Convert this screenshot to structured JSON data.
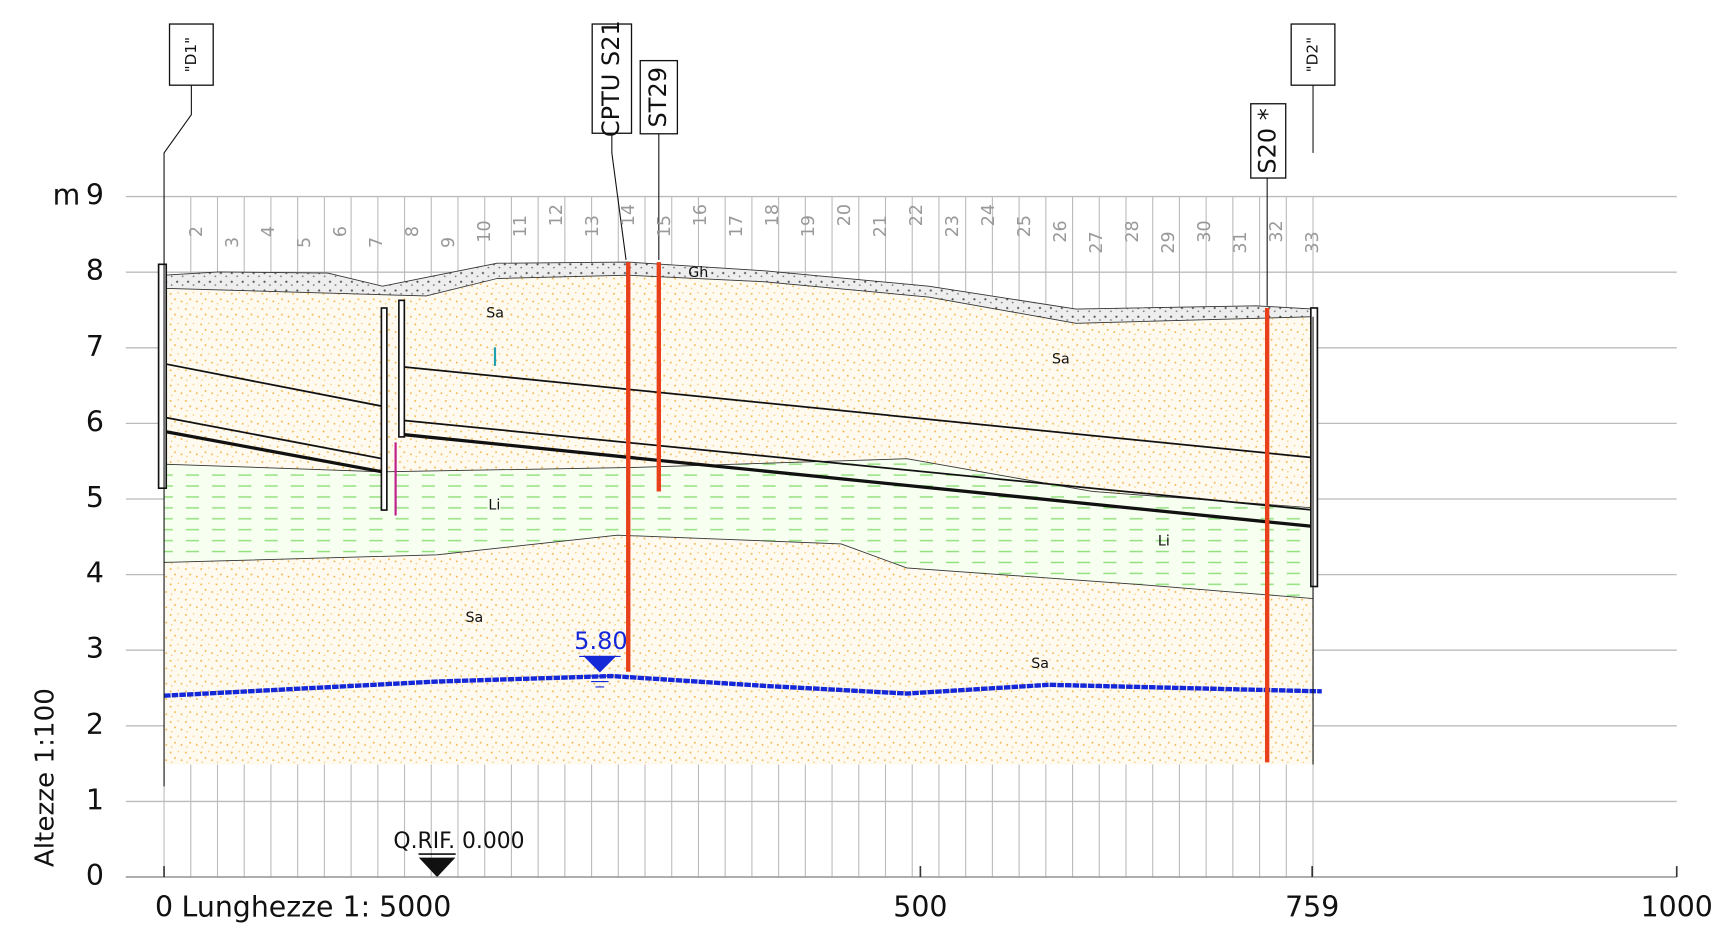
{
  "axes": {
    "y_unit": "m",
    "y_label": "Altezze 1:100",
    "x_label": "Lunghezze 1: 5000",
    "ylim": [
      0,
      9
    ],
    "yticks": [
      0,
      1,
      2,
      3,
      4,
      5,
      6,
      7,
      8,
      9
    ],
    "xlim": [
      0,
      1000
    ],
    "xticks": [
      0,
      500,
      759,
      1000
    ]
  },
  "reference": "Q.RIF. 0.000",
  "water_level": "5.80",
  "boreholes": [
    {
      "label": "\"D1\""
    },
    {
      "label": "CPTU S21"
    },
    {
      "label": "ST29"
    },
    {
      "label": "S20 *"
    },
    {
      "label": "\"D2\""
    }
  ],
  "layers": [
    "Gh",
    "Sa",
    "Sa",
    "Li",
    "Li",
    "Sa",
    "Sa"
  ],
  "sections": [
    "2",
    "3",
    "4",
    "5",
    "6",
    "7",
    "8",
    "9",
    "10",
    "11",
    "12",
    "13",
    "14",
    "15",
    "16",
    "17",
    "18",
    "19",
    "20",
    "21",
    "22",
    "23",
    "24",
    "25",
    "26",
    "27",
    "28",
    "29",
    "30",
    "31",
    "32",
    "33"
  ]
}
